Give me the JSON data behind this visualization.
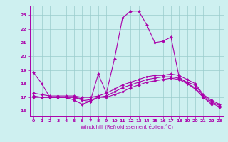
{
  "xlabel": "Windchill (Refroidissement éolien,°C)",
  "bg_color": "#cef0f0",
  "line_color": "#aa00aa",
  "grid_color": "#99cccc",
  "xlim": [
    -0.5,
    23.5
  ],
  "ylim": [
    15.6,
    23.7
  ],
  "yticks": [
    16,
    17,
    18,
    19,
    20,
    21,
    22,
    23
  ],
  "xticks": [
    0,
    1,
    2,
    3,
    4,
    5,
    6,
    7,
    8,
    9,
    10,
    11,
    12,
    13,
    14,
    15,
    16,
    17,
    18,
    19,
    20,
    21,
    22,
    23
  ],
  "line1_x": [
    0,
    1,
    2,
    3,
    4,
    5,
    6,
    7,
    8,
    9,
    10,
    11,
    12,
    13,
    14,
    15,
    16,
    17,
    18,
    19,
    20,
    21,
    22
  ],
  "line1_y": [
    18.8,
    18.0,
    17.0,
    17.0,
    17.0,
    16.8,
    16.5,
    16.7,
    18.7,
    17.3,
    19.8,
    22.8,
    23.3,
    23.3,
    22.3,
    21.0,
    21.1,
    21.4,
    18.5,
    18.0,
    17.6,
    17.0,
    16.5
  ],
  "line2_x": [
    0,
    1,
    2,
    3,
    4,
    5,
    6,
    7,
    8,
    9,
    10,
    11,
    12,
    13,
    14,
    15,
    16,
    17,
    18,
    19,
    20,
    21,
    22,
    23
  ],
  "line2_y": [
    17.3,
    17.2,
    17.1,
    17.1,
    17.1,
    17.1,
    17.0,
    17.0,
    17.1,
    17.3,
    17.6,
    17.9,
    18.1,
    18.3,
    18.5,
    18.6,
    18.6,
    18.7,
    18.6,
    18.3,
    18.0,
    17.2,
    16.8,
    16.5
  ],
  "line3_x": [
    0,
    1,
    2,
    3,
    4,
    5,
    6,
    7,
    8,
    9,
    10,
    11,
    12,
    13,
    14,
    15,
    16,
    17,
    18,
    19,
    20,
    21,
    22,
    23
  ],
  "line3_y": [
    17.1,
    17.0,
    17.0,
    17.0,
    17.0,
    17.0,
    16.9,
    16.8,
    17.0,
    17.1,
    17.4,
    17.7,
    17.9,
    18.1,
    18.3,
    18.4,
    18.5,
    18.5,
    18.4,
    18.1,
    17.9,
    17.1,
    16.7,
    16.4
  ],
  "line4_x": [
    0,
    1,
    2,
    3,
    4,
    5,
    6,
    7,
    8,
    9,
    10,
    11,
    12,
    13,
    14,
    15,
    16,
    17,
    18,
    19,
    20,
    21,
    22,
    23
  ],
  "line4_y": [
    17.0,
    17.0,
    17.0,
    17.0,
    17.0,
    17.0,
    16.8,
    16.7,
    17.0,
    17.0,
    17.2,
    17.4,
    17.7,
    17.9,
    18.1,
    18.2,
    18.3,
    18.4,
    18.3,
    18.0,
    17.7,
    17.0,
    16.6,
    16.3
  ]
}
